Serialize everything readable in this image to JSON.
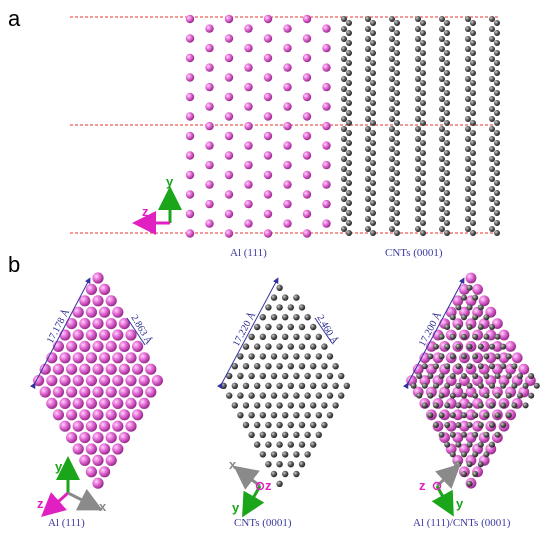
{
  "panel_a": {
    "label": "a",
    "caption_left": "Al (111)",
    "caption_right": "CNTs (0001)",
    "axes": {
      "y": "y",
      "z": "z"
    }
  },
  "panel_b": {
    "label": "b",
    "left": {
      "caption": "Al (111)",
      "dim_long": "17.178 Å",
      "dim_short": "2.863 Å",
      "axes": {
        "y": "y",
        "z": "z",
        "x": "x"
      }
    },
    "middle": {
      "caption": "CNTs (0001)",
      "dim_long": "17.220 Å",
      "dim_short": "2.460 Å",
      "axes": {
        "x": "x",
        "z": "z",
        "y": "y"
      }
    },
    "right": {
      "caption": "Al (111)/CNTs (0001)",
      "dim_long": "17.200 Å",
      "axes": {
        "x": "x",
        "z": "z",
        "y": "y"
      }
    }
  },
  "colors": {
    "al": "#e36fd6",
    "c": "#5a5a5a",
    "dashed": "#e83030",
    "axis_green": "#1aa51a",
    "axis_magenta": "#e020c0",
    "axis_gray": "#8a8a8a",
    "dim_line": "#3030a0"
  }
}
